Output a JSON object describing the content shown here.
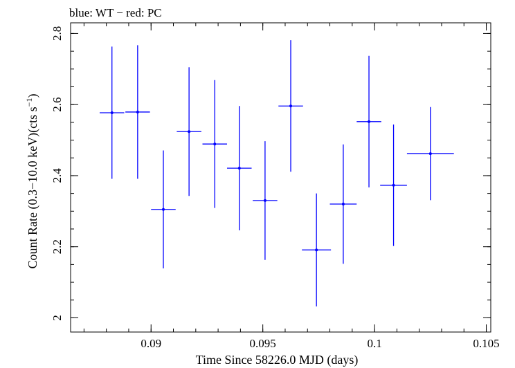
{
  "chart_data": {
    "type": "scatter",
    "title": "blue: WT − red: PC",
    "xlabel": "Time Since 58226.0 MJD (days)",
    "ylabel_main": "Count Rate (0.3−10.0 keV)(cts s",
    "ylabel_sup": "−1",
    "ylabel_end": ")",
    "xlim": [
      0.0864,
      0.1052
    ],
    "ylim": [
      1.96,
      2.83
    ],
    "x_ticks": [
      {
        "value": 0.09,
        "label": "0.09"
      },
      {
        "value": 0.095,
        "label": "0.095"
      },
      {
        "value": 0.1,
        "label": "0.1"
      },
      {
        "value": 0.105,
        "label": "0.105"
      }
    ],
    "x_minor_step": 0.001,
    "y_ticks": [
      {
        "value": 2.0,
        "label": "2"
      },
      {
        "value": 2.2,
        "label": "2.2"
      },
      {
        "value": 2.4,
        "label": "2.4"
      },
      {
        "value": 2.6,
        "label": "2.6"
      },
      {
        "value": 2.8,
        "label": "2.8"
      }
    ],
    "y_minor_step": 0.05,
    "series": [
      {
        "name": "WT",
        "color": "#0000ff",
        "points": [
          {
            "x": 0.08825,
            "y": 2.577,
            "xerr": 0.00055,
            "yerr": 0.186
          },
          {
            "x": 0.0894,
            "y": 2.579,
            "xerr": 0.00055,
            "yerr": 0.188
          },
          {
            "x": 0.09055,
            "y": 2.305,
            "xerr": 0.00055,
            "yerr": 0.166
          },
          {
            "x": 0.0917,
            "y": 2.524,
            "xerr": 0.00055,
            "yerr": 0.181
          },
          {
            "x": 0.09285,
            "y": 2.489,
            "xerr": 0.00055,
            "yerr": 0.18
          },
          {
            "x": 0.09395,
            "y": 2.421,
            "xerr": 0.00055,
            "yerr": 0.175
          },
          {
            "x": 0.0951,
            "y": 2.33,
            "xerr": 0.00055,
            "yerr": 0.167
          },
          {
            "x": 0.09625,
            "y": 2.596,
            "xerr": 0.00055,
            "yerr": 0.185
          },
          {
            "x": 0.0974,
            "y": 2.191,
            "xerr": 0.00065,
            "yerr": 0.159
          },
          {
            "x": 0.0986,
            "y": 2.32,
            "xerr": 0.0006,
            "yerr": 0.168
          },
          {
            "x": 0.09975,
            "y": 2.552,
            "xerr": 0.00055,
            "yerr": 0.185
          },
          {
            "x": 0.10085,
            "y": 2.373,
            "xerr": 0.0006,
            "yerr": 0.171
          },
          {
            "x": 0.1025,
            "y": 2.462,
            "xerr": 0.00105,
            "yerr": 0.131
          }
        ]
      }
    ]
  }
}
